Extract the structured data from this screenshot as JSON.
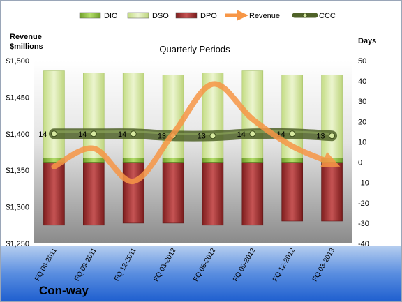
{
  "company": "Con-way",
  "chart_data": {
    "type": "bar",
    "title": "Quarterly Periods",
    "left_axis_label": [
      "Revenue",
      "$millions"
    ],
    "right_axis_label": "Days",
    "categories": [
      "FQ 06-2011",
      "FQ 09-2011",
      "FQ 12-2011",
      "FQ 03-2012",
      "FQ 06-2012",
      "FQ 09-2012",
      "FQ 12-2012",
      "FQ 03-2013"
    ],
    "left_axis": {
      "min": 1250,
      "max": 1500,
      "step": 50,
      "tick_labels": [
        "$1,250",
        "$1,300",
        "$1,350",
        "$1,400",
        "$1,450",
        "$1,500"
      ]
    },
    "right_axis": {
      "min": -40,
      "max": 50,
      "step": 10,
      "tick_labels": [
        "-40",
        "-30",
        "-20",
        "-10",
        "0",
        "10",
        "20",
        "30",
        "40",
        "50"
      ]
    },
    "legend": {
      "placement": "top",
      "entries": [
        "DIO",
        "DSO",
        "DPO",
        "Revenue",
        "CCC"
      ]
    },
    "series": [
      {
        "name": "DIO",
        "kind": "bar",
        "color": "#8dc63f",
        "values": [
          2,
          2,
          2,
          2,
          2,
          2,
          2,
          2
        ]
      },
      {
        "name": "DSO",
        "kind": "bar",
        "color": "#d7e8a8",
        "values": [
          43,
          42,
          42,
          41,
          42,
          43,
          41,
          41
        ]
      },
      {
        "name": "DPO",
        "kind": "bar",
        "color": "#9b2c2c",
        "values": [
          -31,
          -31,
          -30,
          -30,
          -31,
          -31,
          -29,
          -29
        ]
      },
      {
        "name": "Revenue",
        "kind": "line",
        "axis": "left",
        "color": "#f79646",
        "values": [
          1355,
          1380,
          1335,
          1400,
          1468,
          1420,
          1383,
          1360
        ]
      },
      {
        "name": "CCC",
        "kind": "line",
        "axis": "right",
        "color": "#4f6228",
        "values": [
          14,
          14,
          14,
          13,
          13,
          14,
          14,
          13
        ],
        "labels": [
          "14",
          "14",
          "14",
          "13",
          "13",
          "14",
          "14",
          "13"
        ]
      }
    ]
  }
}
